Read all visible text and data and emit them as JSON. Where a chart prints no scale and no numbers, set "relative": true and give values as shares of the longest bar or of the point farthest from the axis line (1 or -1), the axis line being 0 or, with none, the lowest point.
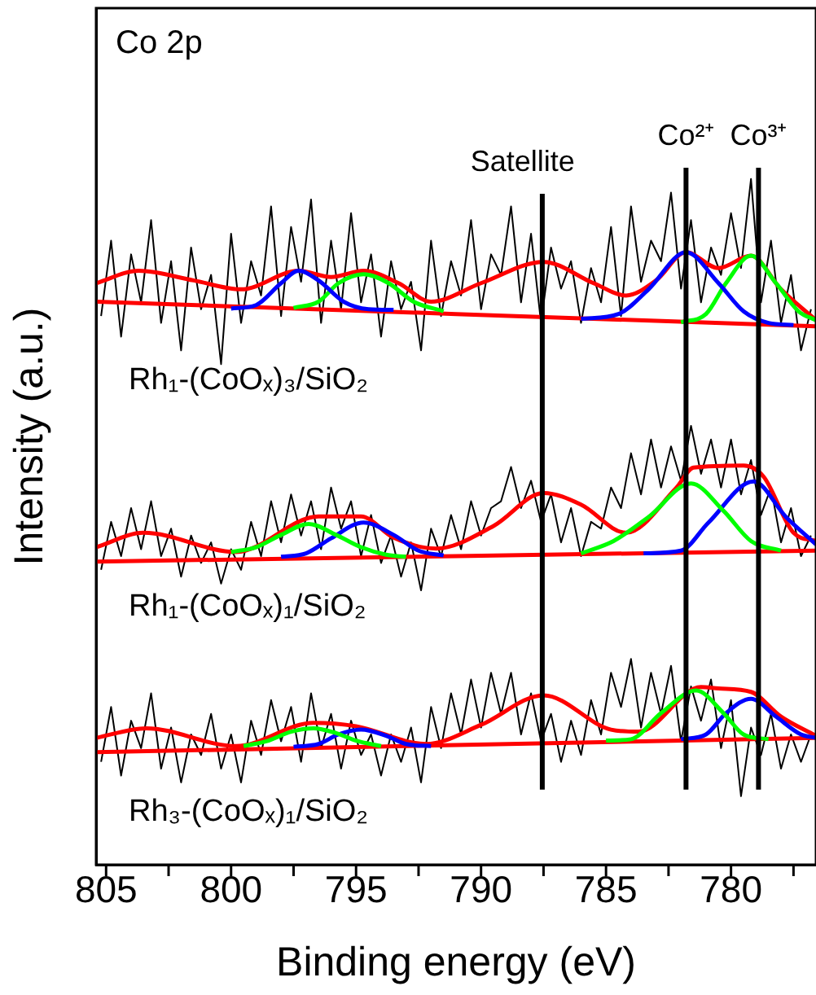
{
  "chart_data": {
    "type": "line",
    "relative": true,
    "xlabel": "Binding energy (eV)",
    "ylabel": "Intensity (a.u.)",
    "annotations": [
      "Co 2p"
    ],
    "xlim": [
      805.4,
      776.6
    ],
    "xticks": [
      805,
      {
        "value": 802.5,
        "label": null
      },
      800,
      {
        "value": 797.5,
        "label": null
      },
      795,
      {
        "value": 792.5,
        "label": null
      },
      790,
      {
        "value": 787.5,
        "label": null
      },
      785,
      {
        "value": 782.5,
        "label": null
      },
      780,
      {
        "value": 777.5,
        "label": null
      }
    ],
    "tick_labels": "x",
    "legend": false,
    "marker": "none",
    "ref_lines": [
      {
        "axis": "x",
        "value": 787.55,
        "label": "Satellite",
        "color": "#000000"
      },
      {
        "axis": "x",
        "value": 781.8,
        "label": "Co²⁺",
        "color": "#000000"
      },
      {
        "axis": "x",
        "value": 778.9,
        "label": "Co³⁺",
        "color": "#000000"
      }
    ],
    "x": [
      805.2,
      804.8,
      804.4,
      804.0,
      803.6,
      803.2,
      802.8,
      802.4,
      802.0,
      801.6,
      801.2,
      800.8,
      800.4,
      800.0,
      799.6,
      799.2,
      798.8,
      798.4,
      798.0,
      797.6,
      797.2,
      796.8,
      796.4,
      796.0,
      795.6,
      795.2,
      794.8,
      794.4,
      794.0,
      793.6,
      793.2,
      792.8,
      792.4,
      792.0,
      791.6,
      791.2,
      790.8,
      790.4,
      790.0,
      789.6,
      789.2,
      788.8,
      788.4,
      788.0,
      787.6,
      787.2,
      786.8,
      786.4,
      786.0,
      785.6,
      785.2,
      784.8,
      784.4,
      784.0,
      783.6,
      783.2,
      782.8,
      782.4,
      782.0,
      781.6,
      781.2,
      780.8,
      780.4,
      780.0,
      779.6,
      779.2,
      778.8,
      778.4,
      778.0,
      777.6,
      777.2,
      776.8
    ],
    "series": [
      {
        "name": "Rh₁-(CoOₓ)₃/SiO₂",
        "color": "#000000",
        "values": [
          0.8,
          0.91,
          0.77,
          0.89,
          0.82,
          0.94,
          0.79,
          0.88,
          0.75,
          0.9,
          0.81,
          0.86,
          0.73,
          0.92,
          0.79,
          0.88,
          0.83,
          0.96,
          0.8,
          0.93,
          0.85,
          0.97,
          0.79,
          0.91,
          0.81,
          0.95,
          0.82,
          0.89,
          0.77,
          0.88,
          0.81,
          0.85,
          0.75,
          0.91,
          0.8,
          0.88,
          0.83,
          0.94,
          0.81,
          0.89,
          0.86,
          0.96,
          0.82,
          0.92,
          0.79,
          0.9,
          0.84,
          0.88,
          0.79,
          0.87,
          0.82,
          0.93,
          0.8,
          0.96,
          0.85,
          0.91,
          0.88,
          0.98,
          0.84,
          0.94,
          0.82,
          0.9,
          0.86,
          0.95,
          0.87,
          1.0,
          0.82,
          0.91,
          0.79,
          0.86,
          0.75,
          0.81
        ]
      },
      {
        "name": "Rh₁-(CoOₓ)₁/SiO₂",
        "color": "#000000",
        "values": [
          0.43,
          0.5,
          0.45,
          0.52,
          0.46,
          0.53,
          0.45,
          0.49,
          0.42,
          0.48,
          0.44,
          0.47,
          0.41,
          0.46,
          0.43,
          0.5,
          0.45,
          0.53,
          0.47,
          0.54,
          0.48,
          0.53,
          0.46,
          0.55,
          0.49,
          0.53,
          0.45,
          0.51,
          0.44,
          0.48,
          0.42,
          0.47,
          0.4,
          0.49,
          0.45,
          0.51,
          0.46,
          0.53,
          0.48,
          0.52,
          0.53,
          0.58,
          0.52,
          0.56,
          0.5,
          0.54,
          0.47,
          0.52,
          0.45,
          0.5,
          0.49,
          0.55,
          0.52,
          0.6,
          0.54,
          0.62,
          0.55,
          0.61,
          0.56,
          0.64,
          0.57,
          0.62,
          0.55,
          0.62,
          0.54,
          0.59,
          0.51,
          0.55,
          0.47,
          0.52,
          0.45,
          0.48
        ]
      },
      {
        "name": "Rh₃-(CoOₓ)₁/SiO₂",
        "color": "#000000",
        "values": [
          0.15,
          0.23,
          0.13,
          0.21,
          0.17,
          0.25,
          0.14,
          0.2,
          0.12,
          0.19,
          0.16,
          0.22,
          0.14,
          0.19,
          0.12,
          0.21,
          0.16,
          0.24,
          0.18,
          0.23,
          0.15,
          0.25,
          0.17,
          0.22,
          0.14,
          0.21,
          0.16,
          0.19,
          0.13,
          0.19,
          0.15,
          0.2,
          0.12,
          0.23,
          0.17,
          0.25,
          0.19,
          0.27,
          0.2,
          0.28,
          0.22,
          0.28,
          0.19,
          0.25,
          0.18,
          0.22,
          0.15,
          0.21,
          0.16,
          0.24,
          0.19,
          0.28,
          0.23,
          0.3,
          0.2,
          0.28,
          0.22,
          0.29,
          0.18,
          0.26,
          0.21,
          0.27,
          0.17,
          0.24,
          0.1,
          0.2,
          0.16,
          0.22,
          0.14,
          0.19,
          0.15,
          0.19
        ]
      },
      {
        "color": "#0000ff",
        "x": [
          800,
          799,
          798,
          797.3,
          796.5,
          795.5,
          794.5,
          793.5
        ],
        "values": [
          0.811,
          0.816,
          0.848,
          0.866,
          0.852,
          0.821,
          0.81,
          0.809
        ]
      },
      {
        "color": "#00ff00",
        "x": [
          797.5,
          796.5,
          795.7,
          794.7,
          793.7,
          792.7,
          791.5
        ],
        "values": [
          0.812,
          0.821,
          0.848,
          0.861,
          0.848,
          0.821,
          0.807
        ]
      },
      {
        "color": "#0000ff",
        "x": [
          786,
          784.5,
          783.3,
          781.8,
          780.5,
          779.5,
          778.5,
          777.5
        ],
        "values": [
          0.796,
          0.803,
          0.839,
          0.893,
          0.848,
          0.807,
          0.79,
          0.787
        ]
      },
      {
        "color": "#00ff00",
        "x": [
          782,
          781,
          780.2,
          779.2,
          778.2,
          777.3,
          776.6
        ],
        "values": [
          0.791,
          0.803,
          0.848,
          0.888,
          0.848,
          0.807,
          0.794
        ]
      },
      {
        "color": "#ff0000",
        "x": [
          805.4,
          776.6
        ],
        "values": [
          0.821,
          0.785
        ]
      },
      {
        "color": "#ff0000",
        "x": [
          805.4,
          803.7,
          801.5,
          799.6,
          797.3,
          796,
          794.7,
          793.3,
          792,
          790,
          787.5,
          785.5,
          784.2,
          783,
          781.8,
          780.5,
          779.2,
          778,
          776.6
        ],
        "values": [
          0.848,
          0.866,
          0.852,
          0.839,
          0.866,
          0.857,
          0.866,
          0.848,
          0.821,
          0.848,
          0.879,
          0.848,
          0.83,
          0.852,
          0.893,
          0.87,
          0.888,
          0.839,
          0.794
        ]
      },
      {
        "color": "#00ff00",
        "x": [
          800,
          799,
          798,
          796.9,
          795.8,
          794.8,
          793.8,
          793
        ],
        "values": [
          0.456,
          0.463,
          0.481,
          0.497,
          0.481,
          0.463,
          0.452,
          0.449
        ]
      },
      {
        "color": "#0000ff",
        "x": [
          798,
          797,
          796,
          794.7,
          793.5,
          792.5,
          791.5
        ],
        "values": [
          0.449,
          0.454,
          0.476,
          0.499,
          0.481,
          0.458,
          0.451
        ]
      },
      {
        "color": "#00ff00",
        "x": [
          786,
          784.7,
          783.3,
          781.6,
          780.3,
          779.2,
          778
        ],
        "values": [
          0.454,
          0.472,
          0.507,
          0.556,
          0.516,
          0.472,
          0.458
        ]
      },
      {
        "color": "#0000ff",
        "x": [
          783.5,
          782,
          780.9,
          779.1,
          777.8,
          776.6
        ],
        "values": [
          0.454,
          0.458,
          0.499,
          0.559,
          0.507,
          0.467
        ]
      },
      {
        "color": "#ff0000",
        "x": [
          805.4,
          776.6
        ],
        "values": [
          0.442,
          0.458
        ]
      },
      {
        "color": "#ff0000",
        "x": [
          805.4,
          803.5,
          799.8,
          796.5,
          794.8,
          793.5,
          791.8,
          789.5,
          787.5,
          786,
          784.2,
          782.2,
          781.5,
          779.5,
          778.7,
          777.5,
          776.6
        ],
        "values": [
          0.463,
          0.484,
          0.456,
          0.508,
          0.508,
          0.477,
          0.461,
          0.494,
          0.542,
          0.525,
          0.484,
          0.549,
          0.579,
          0.582,
          0.566,
          0.484,
          0.472
        ]
      },
      {
        "color": "#00ff00",
        "x": [
          799.5,
          798.5,
          797.6,
          796.7,
          795.8,
          795,
          794
        ],
        "values": [
          0.173,
          0.181,
          0.194,
          0.199,
          0.192,
          0.181,
          0.173
        ]
      },
      {
        "color": "#0000ff",
        "x": [
          797.5,
          796.5,
          795.7,
          794.8,
          793.8,
          793,
          792
        ],
        "values": [
          0.172,
          0.176,
          0.19,
          0.197,
          0.188,
          0.176,
          0.173
        ]
      },
      {
        "color": "#00ff00",
        "x": [
          785,
          784,
          782.8,
          781.4,
          780.3,
          779.5,
          778.5
        ],
        "values": [
          0.181,
          0.183,
          0.221,
          0.254,
          0.221,
          0.19,
          0.183
        ]
      },
      {
        "color": "#0000ff",
        "x": [
          782,
          781,
          780.2,
          779.2,
          778.2,
          777.2,
          776.6
        ],
        "values": [
          0.183,
          0.19,
          0.221,
          0.242,
          0.216,
          0.19,
          0.185
        ]
      },
      {
        "color": "#ff0000",
        "x": [
          805.4,
          776.6
        ],
        "values": [
          0.164,
          0.185
        ]
      },
      {
        "color": "#ff0000",
        "x": [
          805.4,
          803.4,
          799.8,
          796.7,
          795,
          792.2,
          790,
          787.5,
          784.8,
          783.7,
          781.2,
          780.5,
          779.2,
          778,
          776.6
        ],
        "values": [
          0.185,
          0.199,
          0.173,
          0.207,
          0.202,
          0.176,
          0.204,
          0.247,
          0.197,
          0.194,
          0.259,
          0.257,
          0.252,
          0.216,
          0.188
        ]
      }
    ]
  }
}
